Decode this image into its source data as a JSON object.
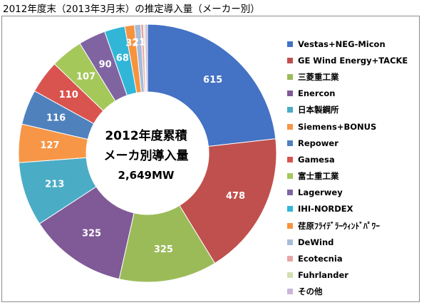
{
  "title": "2012年度末（2013年3月末）の推定導入量（メーカー別）",
  "center": {
    "line1": "2012年度累積",
    "line2": "メーカ別導入量",
    "line3": "2,649MW"
  },
  "chart_data": {
    "type": "pie",
    "donut": true,
    "unit": "MW",
    "total": 2649,
    "legend_position": "right",
    "slices": [
      {
        "label": "Vestas+NEG-Micon",
        "value": 615,
        "color": "#4472C4",
        "shown_label": "615"
      },
      {
        "label": "GE Wind Energy+TACKE",
        "value": 478,
        "color": "#C0504D",
        "shown_label": "478"
      },
      {
        "label": "三菱重工業",
        "value": 325,
        "color": "#9BBB59",
        "shown_label": "325"
      },
      {
        "label": "Enercon",
        "value": 325,
        "color": "#7F5A96",
        "shown_label": "325"
      },
      {
        "label": "日本製鋼所",
        "value": 213,
        "color": "#4BACC6",
        "shown_label": "213"
      },
      {
        "label": "Siemens+BONUS",
        "value": 127,
        "color": "#F79646",
        "shown_label": "127"
      },
      {
        "label": "Repower",
        "value": 116,
        "color": "#4F81BD",
        "shown_label": "116"
      },
      {
        "label": "Gamesa",
        "value": 110,
        "color": "#D9534F",
        "shown_label": "110"
      },
      {
        "label": "富士重工業",
        "value": 107,
        "color": "#A5C85A",
        "shown_label": "107"
      },
      {
        "label": "Lagerwey",
        "value": 90,
        "color": "#8064A2",
        "shown_label": "90"
      },
      {
        "label": "IHI-NORDEX",
        "value": 68,
        "color": "#31B6D8",
        "shown_label": "68"
      },
      {
        "label": "荏原ﾌﾗｲﾃﾞﾗｰｳｨﾝﾄﾞﾊﾟﾜｰ",
        "value": 32,
        "color": "#F7933E",
        "shown_label": "32"
      },
      {
        "label": "DeWind",
        "value": 21,
        "color": "#A7BCD9",
        "shown_label": "21"
      },
      {
        "label": "Ecotecnia",
        "value": 9,
        "color": "#E6A6A4",
        "shown_label": ""
      },
      {
        "label": "Fuhrlander",
        "value": 5,
        "color": "#D0E0B0",
        "shown_label": ""
      },
      {
        "label": "その他",
        "value": 8,
        "color": "#C9B6D8",
        "shown_label": ""
      }
    ]
  }
}
